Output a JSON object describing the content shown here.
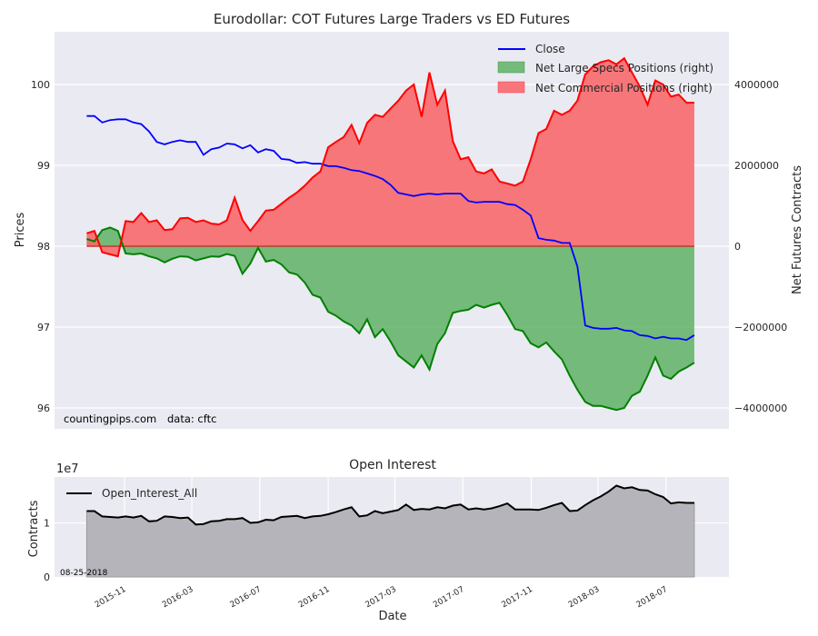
{
  "chart_data": [
    {
      "type": "line",
      "title": "Eurodollar: COT Futures Large Traders vs ED Futures",
      "xlabel": "",
      "ylabel": "Prices",
      "ylabel_right": "Net Futures Contracts",
      "ylim": [
        96,
        100.6
      ],
      "ylim_right": [
        -4000000,
        5200000
      ],
      "yticks": [
        "96",
        "97",
        "98",
        "99",
        "100"
      ],
      "yticks_right": [
        "-4000000",
        "-2000000",
        "0",
        "2000000",
        "4000000"
      ],
      "grid": true,
      "legend_placement": "top-right",
      "legend": [
        "Close",
        "Net Large Specs Positions (right)",
        "Net Commercial Positions (right)"
      ],
      "annotation_source": "countingpips.com",
      "annotation_data": "data: cftc",
      "colors": {
        "close": "#0000ff",
        "specs": "#008000",
        "specs_fill": "#5fb165",
        "commercial": "#ff0000",
        "commercial_fill": "#f8696b",
        "overlap": "#7a0099",
        "overlap_close": "#1a3f8a"
      },
      "x": [
        "2015-08-25",
        "2015-09-08",
        "2015-09-22",
        "2015-10-06",
        "2015-10-20",
        "2015-11-03",
        "2015-11-17",
        "2015-12-01",
        "2015-12-15",
        "2015-12-29",
        "2016-01-12",
        "2016-01-26",
        "2016-02-09",
        "2016-02-23",
        "2016-03-08",
        "2016-03-22",
        "2016-04-05",
        "2016-04-19",
        "2016-05-03",
        "2016-05-17",
        "2016-05-31",
        "2016-06-14",
        "2016-06-28",
        "2016-07-12",
        "2016-07-26",
        "2016-08-09",
        "2016-08-23",
        "2016-09-06",
        "2016-09-20",
        "2016-10-04",
        "2016-10-18",
        "2016-11-01",
        "2016-11-15",
        "2016-11-29",
        "2016-12-13",
        "2016-12-27",
        "2017-01-10",
        "2017-01-24",
        "2017-02-07",
        "2017-02-21",
        "2017-03-07",
        "2017-03-21",
        "2017-04-04",
        "2017-04-18",
        "2017-05-02",
        "2017-05-16",
        "2017-05-30",
        "2017-06-13",
        "2017-06-27",
        "2017-07-11",
        "2017-07-25",
        "2017-08-08",
        "2017-08-22",
        "2017-09-05",
        "2017-09-19",
        "2017-10-03",
        "2017-10-17",
        "2017-10-31",
        "2017-11-14",
        "2017-11-28",
        "2017-12-12",
        "2017-12-26",
        "2018-01-09",
        "2018-01-23",
        "2018-02-06",
        "2018-02-20",
        "2018-03-06",
        "2018-03-20",
        "2018-04-03",
        "2018-04-17",
        "2018-05-01",
        "2018-05-15",
        "2018-05-29",
        "2018-06-12",
        "2018-06-26",
        "2018-07-10",
        "2018-07-24",
        "2018-08-07",
        "2018-08-21"
      ],
      "series": [
        {
          "name": "Close",
          "axis": "left",
          "values": [
            99.61,
            99.61,
            99.53,
            99.56,
            99.57,
            99.57,
            99.53,
            99.51,
            99.42,
            99.29,
            99.26,
            99.29,
            99.31,
            99.29,
            99.29,
            99.13,
            99.2,
            99.22,
            99.27,
            99.26,
            99.21,
            99.25,
            99.16,
            99.2,
            99.18,
            99.08,
            99.07,
            99.03,
            99.04,
            99.02,
            99.02,
            98.99,
            98.99,
            98.97,
            98.94,
            98.93,
            98.9,
            98.87,
            98.83,
            98.76,
            98.66,
            98.64,
            98.62,
            98.64,
            98.65,
            98.64,
            98.65,
            98.65,
            98.65,
            98.56,
            98.54,
            98.55,
            98.55,
            98.55,
            98.52,
            98.51,
            98.45,
            98.38,
            98.1,
            98.08,
            98.07,
            98.04,
            98.04,
            97.75,
            97.02,
            96.99,
            96.98,
            96.98,
            96.99,
            96.96,
            96.95,
            96.9,
            96.89,
            96.86,
            96.88,
            96.86,
            96.86,
            96.84,
            96.9
          ]
        },
        {
          "name": "Net Large Specs Positions (right)",
          "axis": "right",
          "values": [
            180000,
            120000,
            400000,
            460000,
            380000,
            -180000,
            -200000,
            -180000,
            -250000,
            -300000,
            -400000,
            -310000,
            -250000,
            -260000,
            -350000,
            -300000,
            -250000,
            -260000,
            -190000,
            -240000,
            -680000,
            -430000,
            -40000,
            -380000,
            -340000,
            -450000,
            -650000,
            -700000,
            -900000,
            -1200000,
            -1270000,
            -1620000,
            -1720000,
            -1860000,
            -1960000,
            -2150000,
            -1810000,
            -2250000,
            -2050000,
            -2350000,
            -2700000,
            -2850000,
            -3000000,
            -2700000,
            -3050000,
            -2420000,
            -2150000,
            -1650000,
            -1600000,
            -1570000,
            -1450000,
            -1520000,
            -1450000,
            -1400000,
            -1700000,
            -2050000,
            -2100000,
            -2400000,
            -2500000,
            -2380000,
            -2600000,
            -2800000,
            -3200000,
            -3550000,
            -3850000,
            -3950000,
            -3950000,
            -4000000,
            -4050000,
            -4000000,
            -3700000,
            -3600000,
            -3200000,
            -2750000,
            -3200000,
            -3280000,
            -3100000,
            -3000000,
            -2880000
          ]
        },
        {
          "name": "Net Commercial Positions (right)",
          "axis": "right",
          "values": [
            320000,
            380000,
            -150000,
            -200000,
            -250000,
            620000,
            600000,
            820000,
            600000,
            640000,
            400000,
            420000,
            690000,
            700000,
            600000,
            640000,
            560000,
            540000,
            640000,
            1200000,
            650000,
            380000,
            620000,
            880000,
            900000,
            1050000,
            1200000,
            1330000,
            1500000,
            1700000,
            1850000,
            2450000,
            2580000,
            2700000,
            3000000,
            2550000,
            3050000,
            3250000,
            3200000,
            3400000,
            3600000,
            3850000,
            4000000,
            3200000,
            4300000,
            3500000,
            3850000,
            2600000,
            2150000,
            2200000,
            1850000,
            1800000,
            1900000,
            1600000,
            1550000,
            1500000,
            1600000,
            2150000,
            2800000,
            2900000,
            3350000,
            3250000,
            3350000,
            3600000,
            4250000,
            4450000,
            4550000,
            4600000,
            4500000,
            4650000,
            4300000,
            3950000,
            3500000,
            4100000,
            4000000,
            3700000,
            3750000,
            3550000,
            3550000
          ]
        }
      ]
    },
    {
      "type": "area",
      "title": "Open Interest",
      "xlabel": "Date",
      "ylabel": "Contracts",
      "yscale_label": "1e7",
      "ylim": [
        0,
        18500000
      ],
      "yticks": [
        "0",
        "1"
      ],
      "xticks": [
        "2015-11",
        "2016-03",
        "2016-07",
        "2016-11",
        "2017-03",
        "2017-07",
        "2017-11",
        "2018-03",
        "2018-07"
      ],
      "grid": true,
      "legend_placement": "top-left",
      "legend": [
        "Open_Interest_All"
      ],
      "date_stamp": "08-25-2018",
      "colors": {
        "line": "#000000",
        "fill": "#b2b1b6"
      },
      "x": [
        "2015-08-25",
        "2015-09-08",
        "2015-09-22",
        "2015-10-06",
        "2015-10-20",
        "2015-11-03",
        "2015-11-17",
        "2015-12-01",
        "2015-12-15",
        "2015-12-29",
        "2016-01-12",
        "2016-01-26",
        "2016-02-09",
        "2016-02-23",
        "2016-03-08",
        "2016-03-22",
        "2016-04-05",
        "2016-04-19",
        "2016-05-03",
        "2016-05-17",
        "2016-05-31",
        "2016-06-14",
        "2016-06-28",
        "2016-07-12",
        "2016-07-26",
        "2016-08-09",
        "2016-08-23",
        "2016-09-06",
        "2016-09-20",
        "2016-10-04",
        "2016-10-18",
        "2016-11-01",
        "2016-11-15",
        "2016-11-29",
        "2016-12-13",
        "2016-12-27",
        "2017-01-10",
        "2017-01-24",
        "2017-02-07",
        "2017-02-21",
        "2017-03-07",
        "2017-03-21",
        "2017-04-04",
        "2017-04-18",
        "2017-05-02",
        "2017-05-16",
        "2017-05-30",
        "2017-06-13",
        "2017-06-27",
        "2017-07-11",
        "2017-07-25",
        "2017-08-08",
        "2017-08-22",
        "2017-09-05",
        "2017-09-19",
        "2017-10-03",
        "2017-10-17",
        "2017-10-31",
        "2017-11-14",
        "2017-11-28",
        "2017-12-12",
        "2017-12-26",
        "2018-01-09",
        "2018-01-23",
        "2018-02-06",
        "2018-02-20",
        "2018-03-06",
        "2018-03-20",
        "2018-04-03",
        "2018-04-17",
        "2018-05-01",
        "2018-05-15",
        "2018-05-29",
        "2018-06-12",
        "2018-06-26",
        "2018-07-10",
        "2018-07-24",
        "2018-08-07",
        "2018-08-21"
      ],
      "series": [
        {
          "name": "Open_Interest_All",
          "values": [
            12200000,
            12200000,
            11200000,
            11100000,
            11000000,
            11200000,
            11000000,
            11300000,
            10300000,
            10400000,
            11200000,
            11100000,
            10900000,
            11000000,
            9700000,
            9800000,
            10300000,
            10400000,
            10700000,
            10700000,
            10900000,
            10000000,
            10100000,
            10600000,
            10500000,
            11100000,
            11200000,
            11300000,
            10900000,
            11200000,
            11300000,
            11600000,
            12000000,
            12500000,
            12900000,
            11200000,
            11400000,
            12200000,
            11800000,
            12100000,
            12400000,
            13400000,
            12400000,
            12600000,
            12500000,
            12900000,
            12700000,
            13200000,
            13400000,
            12500000,
            12700000,
            12500000,
            12700000,
            13100000,
            13600000,
            12500000,
            12500000,
            12500000,
            12400000,
            12800000,
            13300000,
            13700000,
            12200000,
            12300000,
            13300000,
            14200000,
            14900000,
            15800000,
            16900000,
            16400000,
            16600000,
            16100000,
            16000000,
            15300000,
            14800000,
            13600000,
            13800000,
            13700000,
            13700000
          ]
        }
      ]
    }
  ]
}
